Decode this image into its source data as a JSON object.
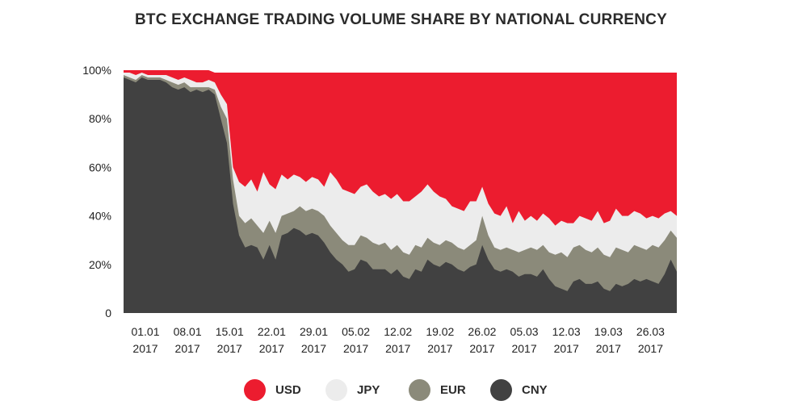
{
  "chart_data": {
    "type": "area",
    "stacked": true,
    "title": "BTC EXCHANGE TRADING VOLUME SHARE BY NATIONAL CURRENCY",
    "y_ticks": [
      "0",
      "20%",
      "40%",
      "60%",
      "80%",
      "100%"
    ],
    "ylim": [
      0,
      100
    ],
    "x_tick_labels": [
      [
        "01.01",
        "2017"
      ],
      [
        "08.01",
        "2017"
      ],
      [
        "15.01",
        "2017"
      ],
      [
        "22.01",
        "2017"
      ],
      [
        "29.01",
        "2017"
      ],
      [
        "05.02",
        "2017"
      ],
      [
        "12.02",
        "2017"
      ],
      [
        "19.02",
        "2017"
      ],
      [
        "26.02",
        "2017"
      ],
      [
        "05.03",
        "2017"
      ],
      [
        "12.03",
        "2017"
      ],
      [
        "19.03",
        "2017"
      ],
      [
        "26.03",
        "2017"
      ]
    ],
    "x_range_days": [
      0,
      92
    ],
    "legend_position": "bottom",
    "series": [
      {
        "name": "CNY",
        "color": "#414141",
        "cumulative_top": [
          97,
          96,
          95,
          97,
          96,
          96,
          96,
          95,
          93,
          92,
          93,
          91,
          92,
          91,
          92,
          90,
          80,
          70,
          45,
          32,
          27,
          28,
          27,
          22,
          28,
          22,
          32,
          33,
          35,
          34,
          32,
          33,
          32,
          29,
          25,
          22,
          20,
          17,
          18,
          22,
          21,
          18,
          18,
          18,
          16,
          18,
          15,
          14,
          18,
          17,
          22,
          20,
          19,
          21,
          20,
          18,
          17,
          19,
          20,
          28,
          22,
          18,
          17,
          18,
          17,
          15,
          16,
          16,
          15,
          18,
          14,
          11,
          10,
          9,
          13,
          14,
          12,
          12,
          13,
          10,
          9,
          12,
          11,
          12,
          14,
          13,
          14,
          13,
          12,
          16,
          22,
          17
        ]
      },
      {
        "name": "EUR",
        "color": "#8b8a7a",
        "cumulative_top": [
          98,
          97,
          96,
          98,
          97,
          97,
          97,
          96,
          95,
          94,
          95,
          93,
          93,
          93,
          93,
          92,
          85,
          80,
          55,
          40,
          37,
          39,
          36,
          33,
          38,
          33,
          40,
          41,
          42,
          44,
          42,
          43,
          42,
          40,
          36,
          33,
          30,
          28,
          28,
          32,
          31,
          29,
          28,
          29,
          26,
          28,
          25,
          24,
          28,
          27,
          31,
          29,
          28,
          30,
          29,
          27,
          26,
          28,
          30,
          40,
          32,
          27,
          26,
          27,
          26,
          25,
          26,
          27,
          26,
          28,
          25,
          24,
          25,
          23,
          27,
          28,
          26,
          25,
          27,
          24,
          23,
          27,
          26,
          25,
          28,
          27,
          26,
          28,
          27,
          30,
          34,
          31
        ]
      },
      {
        "name": "JPY",
        "color": "#ececec",
        "cumulative_top": [
          99,
          99,
          98,
          99,
          98,
          98,
          98,
          98,
          97,
          96,
          97,
          96,
          95,
          95,
          96,
          95,
          90,
          86,
          60,
          54,
          52,
          55,
          50,
          58,
          53,
          51,
          57,
          55,
          57,
          56,
          54,
          56,
          55,
          52,
          58,
          55,
          51,
          50,
          49,
          52,
          53,
          50,
          48,
          49,
          47,
          49,
          46,
          46,
          48,
          50,
          53,
          50,
          48,
          47,
          44,
          43,
          42,
          46,
          46,
          52,
          45,
          41,
          40,
          44,
          37,
          42,
          38,
          40,
          38,
          41,
          39,
          36,
          38,
          37,
          37,
          40,
          39,
          38,
          42,
          37,
          38,
          43,
          40,
          40,
          42,
          41,
          39,
          40,
          39,
          41,
          42,
          40
        ]
      },
      {
        "name": "USD",
        "color": "#ec1c2f",
        "cumulative_top": [
          100,
          100,
          100,
          100,
          100,
          100,
          100,
          100,
          100,
          100,
          100,
          100,
          100,
          100,
          100,
          99,
          99,
          99,
          99,
          99,
          99,
          99,
          99,
          99,
          99,
          99,
          99,
          99,
          99,
          99,
          99,
          99,
          99,
          99,
          99,
          99,
          99,
          99,
          99,
          99,
          99,
          99,
          99,
          99,
          99,
          99,
          99,
          99,
          99,
          99,
          99,
          99,
          99,
          99,
          99,
          99,
          99,
          99,
          99,
          99,
          99,
          99,
          99,
          99,
          99,
          99,
          99,
          99,
          99,
          99,
          99,
          99,
          99,
          99,
          99,
          99,
          99,
          99,
          99,
          99,
          99,
          99,
          99,
          99,
          99,
          99,
          99,
          99,
          99,
          99,
          99,
          99
        ]
      }
    ]
  }
}
